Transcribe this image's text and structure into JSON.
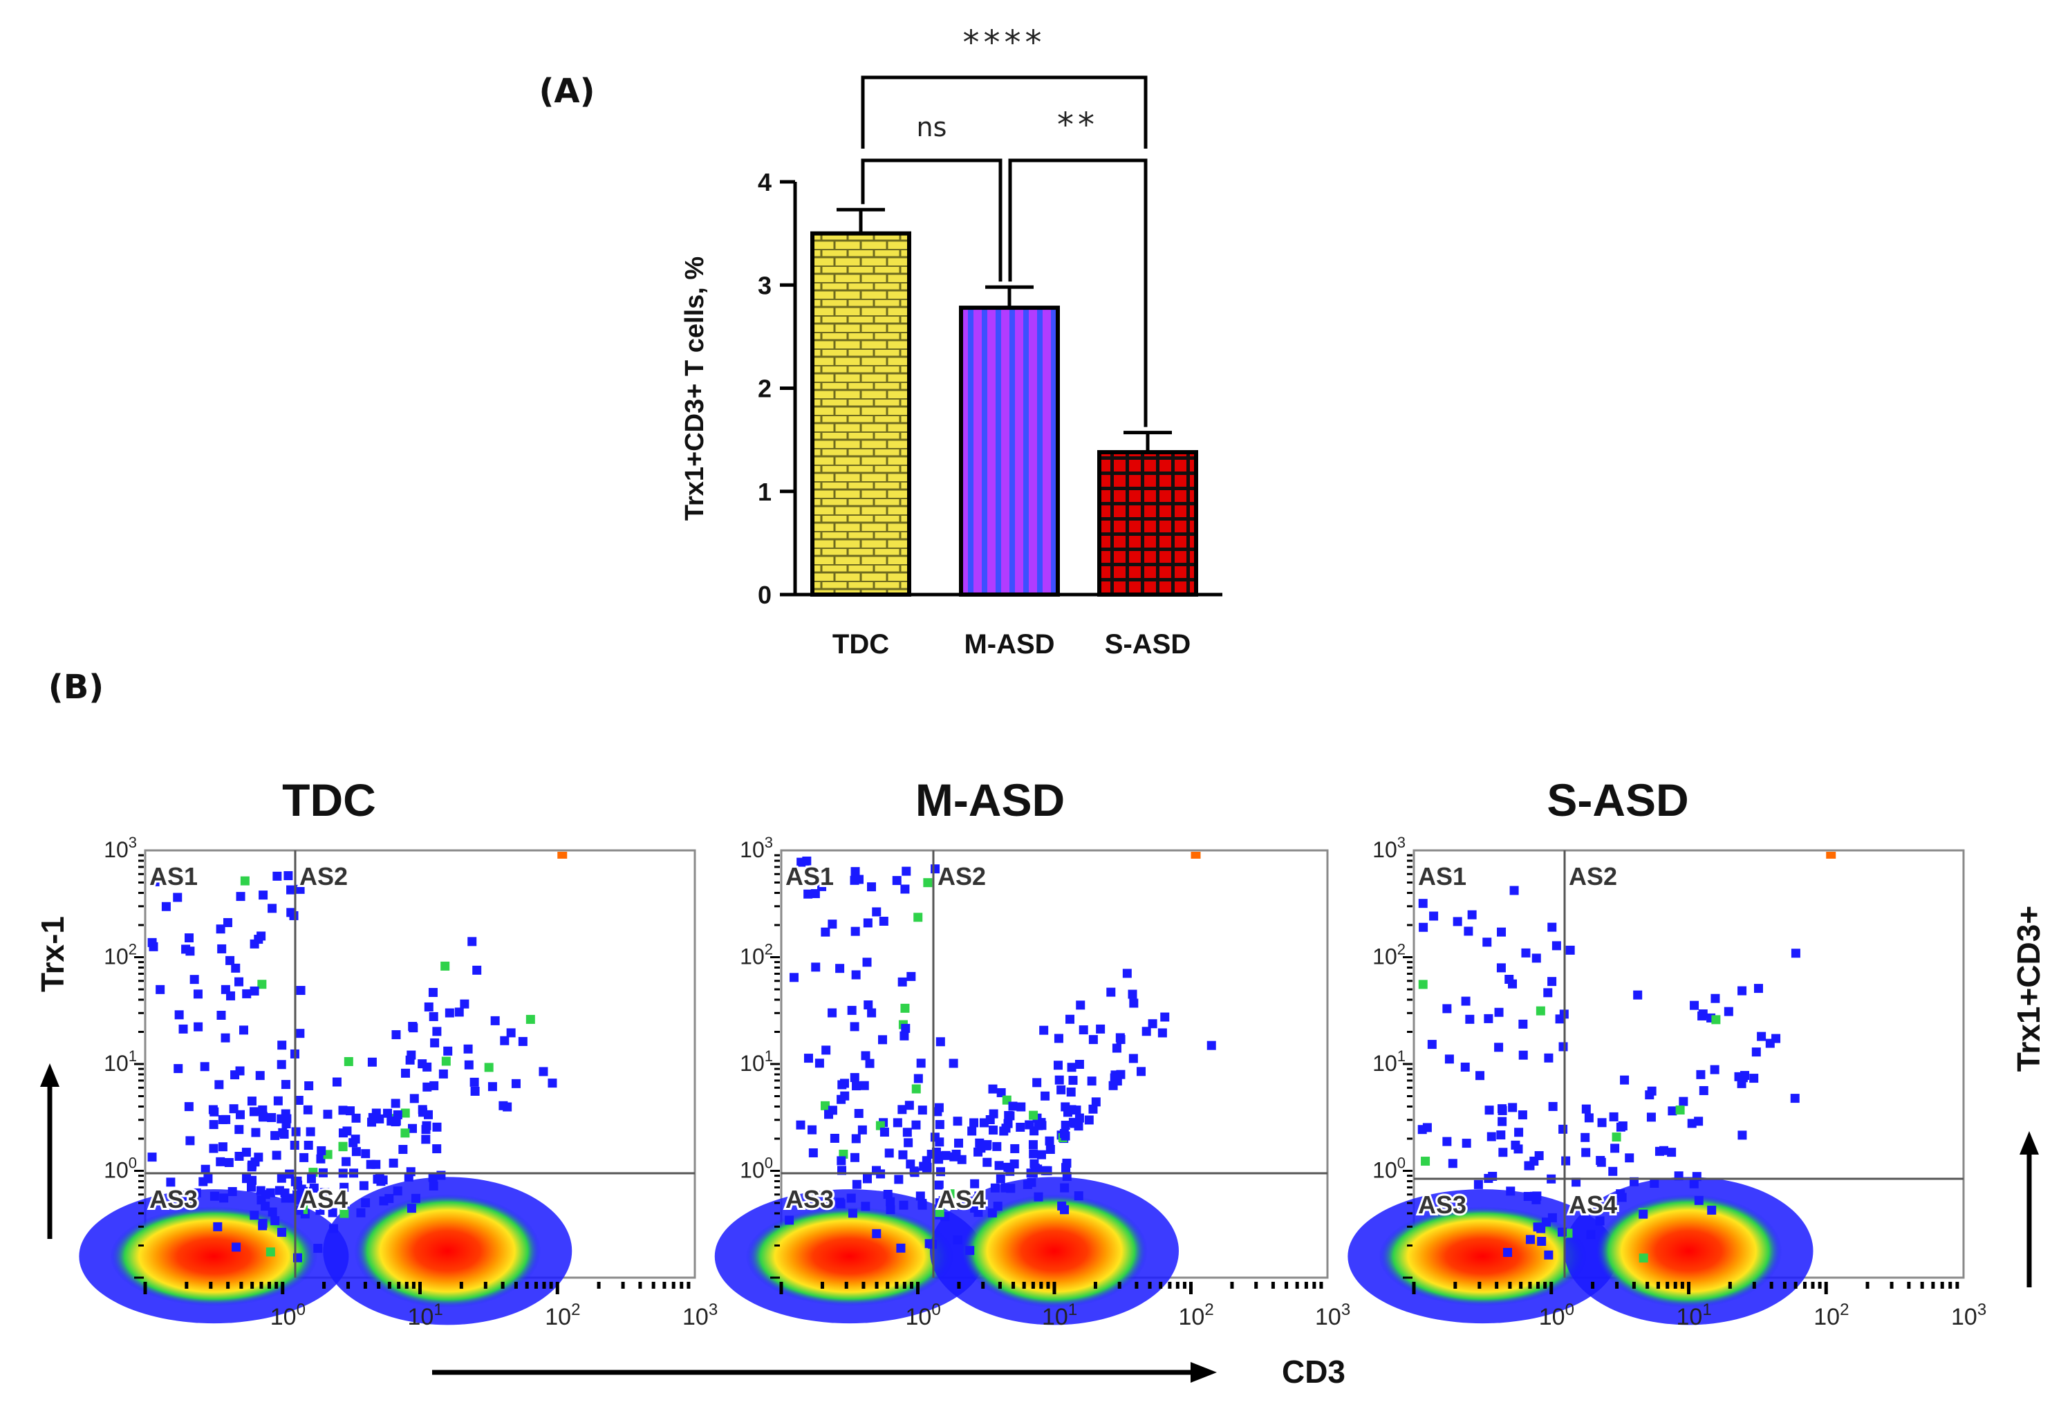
{
  "panel_labels": {
    "a": "(A)",
    "b": "(B)"
  },
  "colors": {
    "tdc_fill": "#f2e44a",
    "tdc_line": "#6e6a1f",
    "masd_fill": "#b13cff",
    "masd_line": "#3d50ff",
    "sasd_fill": "#e10000",
    "sasd_line": "#111111",
    "density_low": "#1a1aff",
    "density_mid": "#26d24a",
    "density_high": "#ffe51f",
    "density_peak": "#ff1c00"
  },
  "chart_data": [
    {
      "type": "bar",
      "panel": "(A)",
      "categories": [
        "TDC",
        "M-ASD",
        "S-ASD"
      ],
      "values": [
        3.5,
        2.78,
        1.38
      ],
      "errors": [
        0.23,
        0.2,
        0.19
      ],
      "ylabel": "Trx1+CD3+ T cells, %",
      "xlabel": "",
      "ylim": [
        0,
        4
      ],
      "yticks": [
        "0",
        "1",
        "2",
        "3",
        "4"
      ],
      "significance": [
        {
          "from": "TDC",
          "to": "M-ASD",
          "label": "ns"
        },
        {
          "from": "M-ASD",
          "to": "S-ASD",
          "label": "**"
        },
        {
          "from": "TDC",
          "to": "S-ASD",
          "label": "****"
        }
      ]
    },
    {
      "type": "scatter",
      "panel": "(B)",
      "description": "flow cytometry density dot plots",
      "plots": [
        {
          "title": "TDC",
          "gates": [
            "AS1",
            "AS2",
            "AS3",
            "AS4"
          ],
          "clusters": [
            [
              -0.5,
              -0.8
            ],
            [
              1.2,
              -0.75
            ]
          ]
        },
        {
          "title": "M-ASD",
          "gates": [
            "AS1",
            "AS2",
            "AS3",
            "AS4"
          ],
          "clusters": [
            [
              -0.5,
              -0.8
            ],
            [
              1.0,
              -0.75
            ]
          ]
        },
        {
          "title": "S-ASD",
          "gates": [
            "AS1",
            "AS2",
            "AS3",
            "AS4"
          ],
          "clusters": [
            [
              -0.5,
              -0.8
            ],
            [
              1.0,
              -0.75
            ]
          ]
        }
      ],
      "xlabel": "CD3",
      "ylabel": "Trx-1",
      "right_label": "Trx1+CD3+",
      "xlim": [
        -1,
        3
      ],
      "ylim": [
        -1,
        3
      ],
      "x_ticks": [
        {
          "base": "10",
          "exp": "0"
        },
        {
          "base": "10",
          "exp": "1"
        },
        {
          "base": "10",
          "exp": "2"
        },
        {
          "base": "10",
          "exp": "3"
        }
      ],
      "y_ticks": [
        {
          "base": "10",
          "exp": "0"
        },
        {
          "base": "10",
          "exp": "1"
        },
        {
          "base": "10",
          "exp": "2"
        },
        {
          "base": "10",
          "exp": "3"
        }
      ]
    }
  ]
}
